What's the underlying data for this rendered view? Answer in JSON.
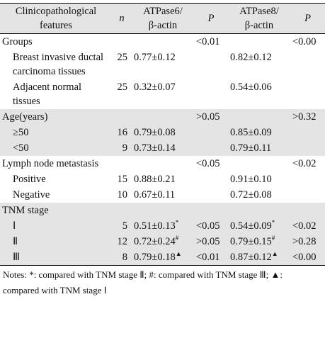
{
  "table": {
    "header": {
      "feature": [
        "Clinicopathological",
        "features"
      ],
      "n": "n",
      "atp6": [
        "ATPase6/",
        "β-actin"
      ],
      "p6": "P",
      "atp8": [
        "ATPase8/",
        "β-actin"
      ],
      "p8": "P"
    },
    "groups": [
      {
        "title": "Groups",
        "p6": "<0.01",
        "p8": "<0.00",
        "items": [
          {
            "label": "Breast invasive ductal carcinoma tissues",
            "n": 25,
            "atp6": "0.77±0.12",
            "atp8": "0.82±0.12"
          },
          {
            "label": "Adjacent normal tissues",
            "n": 25,
            "atp6": "0.32±0.07",
            "atp8": "0.54±0.06"
          }
        ]
      },
      {
        "title": "Age(years)",
        "p6": ">0.05",
        "p8": ">0.32",
        "items": [
          {
            "label": "≥50",
            "n": 16,
            "atp6": "0.79±0.08",
            "atp8": "0.85±0.09"
          },
          {
            "label": "<50",
            "n": 9,
            "atp6": "0.73±0.14",
            "atp8": "0.79±0.11"
          }
        ]
      },
      {
        "title": "Lymph node metastasis",
        "p6": "<0.05",
        "p8": "<0.02",
        "items": [
          {
            "label": "Positive",
            "n": 15,
            "atp6": "0.88±0.21",
            "atp8": "0.91±0.10"
          },
          {
            "label": "Negative",
            "n": 10,
            "atp6": "0.67±0.11",
            "atp8": "0.72±0.08"
          }
        ]
      },
      {
        "title": "TNM stage",
        "items": [
          {
            "label": "Ⅰ",
            "n": 5,
            "atp6": "0.51±0.13",
            "atp6_sup": "*",
            "p6": "<0.05",
            "atp8": "0.54±0.09",
            "atp8_sup": "*",
            "p8": "<0.02"
          },
          {
            "label": "Ⅱ",
            "n": 12,
            "atp6": "0.72±0.24",
            "atp6_sup": "#",
            "p6": ">0.05",
            "atp8": "0.79±0.15",
            "atp8_sup": "#",
            "p8": ">0.28"
          },
          {
            "label": "Ⅲ",
            "n": 8,
            "atp6": "0.79±0.18",
            "atp6_sup": "▲",
            "p6": "<0.01",
            "atp8": "0.87±0.12",
            "atp8_sup": "▲",
            "p8": "<0.00"
          }
        ]
      }
    ],
    "notes": "Notes: *: compared with TNM stage Ⅱ; #: compared with TNM stage Ⅲ; ▲: compared with TNM stage Ⅰ"
  }
}
